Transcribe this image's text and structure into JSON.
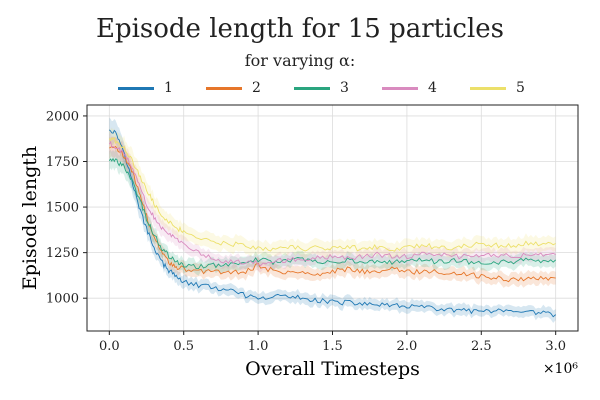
{
  "chart_data": {
    "type": "line",
    "title": "Episode length for 15 particles",
    "subtitle": "for varying α:",
    "xlabel": "Overall Timesteps",
    "ylabel": "Episode length",
    "x_multiplier_label": "×10⁶",
    "xlim": [
      -0.15,
      3.15
    ],
    "ylim": [
      820,
      2060
    ],
    "x_ticks": [
      0.0,
      0.5,
      1.0,
      1.5,
      2.0,
      2.5,
      3.0
    ],
    "x_tick_labels": [
      "0.0",
      "0.5",
      "1.0",
      "1.5",
      "2.0",
      "2.5",
      "3.0"
    ],
    "y_ticks": [
      1000,
      1250,
      1500,
      1750,
      2000
    ],
    "y_tick_labels": [
      "1000",
      "1250",
      "1500",
      "1750",
      "2000"
    ],
    "grid": true,
    "legend_position": "top",
    "x": [
      0.0,
      0.05,
      0.1,
      0.15,
      0.2,
      0.25,
      0.3,
      0.35,
      0.4,
      0.45,
      0.5,
      0.6,
      0.7,
      0.8,
      0.9,
      1.0,
      1.1,
      1.2,
      1.3,
      1.4,
      1.5,
      1.6,
      1.7,
      1.8,
      1.9,
      2.0,
      2.1,
      2.2,
      2.3,
      2.4,
      2.5,
      2.6,
      2.7,
      2.8,
      2.9,
      3.0
    ],
    "series": [
      {
        "name": "1",
        "color": "#1f78b4",
        "values": [
          1930,
          1900,
          1800,
          1650,
          1500,
          1380,
          1280,
          1200,
          1150,
          1120,
          1090,
          1070,
          1060,
          1040,
          1020,
          990,
          1010,
          1010,
          1000,
          990,
          980,
          975,
          970,
          965,
          955,
          960,
          950,
          940,
          935,
          930,
          925,
          930,
          920,
          920,
          920,
          910
        ],
        "band": [
          70,
          65,
          60,
          55,
          50,
          45,
          40,
          35,
          35,
          35,
          35,
          30,
          30,
          30,
          30,
          30,
          30,
          30,
          30,
          30,
          30,
          30,
          30,
          30,
          30,
          30,
          30,
          30,
          30,
          30,
          30,
          30,
          30,
          30,
          30,
          30
        ]
      },
      {
        "name": "2",
        "color": "#e6762a",
        "values": [
          1830,
          1820,
          1780,
          1700,
          1580,
          1450,
          1340,
          1250,
          1200,
          1170,
          1160,
          1150,
          1145,
          1140,
          1140,
          1180,
          1150,
          1140,
          1140,
          1130,
          1150,
          1160,
          1150,
          1140,
          1160,
          1150,
          1140,
          1150,
          1130,
          1130,
          1120,
          1110,
          1100,
          1110,
          1110,
          1110
        ],
        "band": [
          55,
          55,
          55,
          50,
          50,
          45,
          40,
          40,
          35,
          35,
          35,
          35,
          35,
          35,
          35,
          35,
          35,
          35,
          35,
          35,
          35,
          35,
          35,
          35,
          35,
          35,
          35,
          35,
          35,
          35,
          35,
          35,
          35,
          35,
          35,
          35
        ]
      },
      {
        "name": "3",
        "color": "#2aa57f",
        "values": [
          1760,
          1750,
          1720,
          1650,
          1550,
          1440,
          1350,
          1280,
          1230,
          1200,
          1180,
          1170,
          1180,
          1190,
          1200,
          1210,
          1200,
          1210,
          1210,
          1200,
          1200,
          1210,
          1200,
          1200,
          1200,
          1210,
          1210,
          1200,
          1210,
          1200,
          1200,
          1200,
          1200,
          1210,
          1200,
          1210
        ],
        "band": [
          50,
          50,
          50,
          50,
          50,
          45,
          40,
          40,
          35,
          35,
          35,
          35,
          35,
          35,
          35,
          35,
          35,
          35,
          35,
          35,
          35,
          35,
          35,
          35,
          35,
          35,
          35,
          35,
          35,
          35,
          35,
          35,
          35,
          35,
          35,
          35
        ]
      },
      {
        "name": "4",
        "color": "#d98bbf",
        "values": [
          1850,
          1830,
          1790,
          1720,
          1620,
          1520,
          1440,
          1390,
          1360,
          1330,
          1300,
          1250,
          1220,
          1200,
          1200,
          1190,
          1200,
          1210,
          1220,
          1220,
          1230,
          1220,
          1230,
          1240,
          1230,
          1230,
          1240,
          1240,
          1230,
          1230,
          1240,
          1240,
          1230,
          1240,
          1240,
          1240
        ],
        "band": [
          55,
          55,
          55,
          55,
          50,
          50,
          45,
          45,
          40,
          40,
          40,
          35,
          35,
          35,
          35,
          35,
          35,
          35,
          35,
          35,
          35,
          35,
          35,
          35,
          35,
          35,
          35,
          35,
          35,
          35,
          35,
          35,
          35,
          35,
          35,
          35
        ]
      },
      {
        "name": "5",
        "color": "#ece06a",
        "values": [
          1880,
          1860,
          1820,
          1760,
          1680,
          1600,
          1520,
          1460,
          1420,
          1390,
          1360,
          1330,
          1310,
          1300,
          1290,
          1280,
          1270,
          1280,
          1270,
          1280,
          1270,
          1280,
          1270,
          1280,
          1270,
          1280,
          1290,
          1280,
          1270,
          1290,
          1300,
          1290,
          1290,
          1300,
          1300,
          1300
        ],
        "band": [
          55,
          55,
          55,
          55,
          55,
          50,
          50,
          45,
          45,
          45,
          45,
          40,
          40,
          40,
          40,
          40,
          40,
          40,
          40,
          40,
          40,
          40,
          40,
          40,
          40,
          40,
          40,
          40,
          40,
          40,
          40,
          40,
          40,
          40,
          40,
          40
        ]
      }
    ]
  }
}
